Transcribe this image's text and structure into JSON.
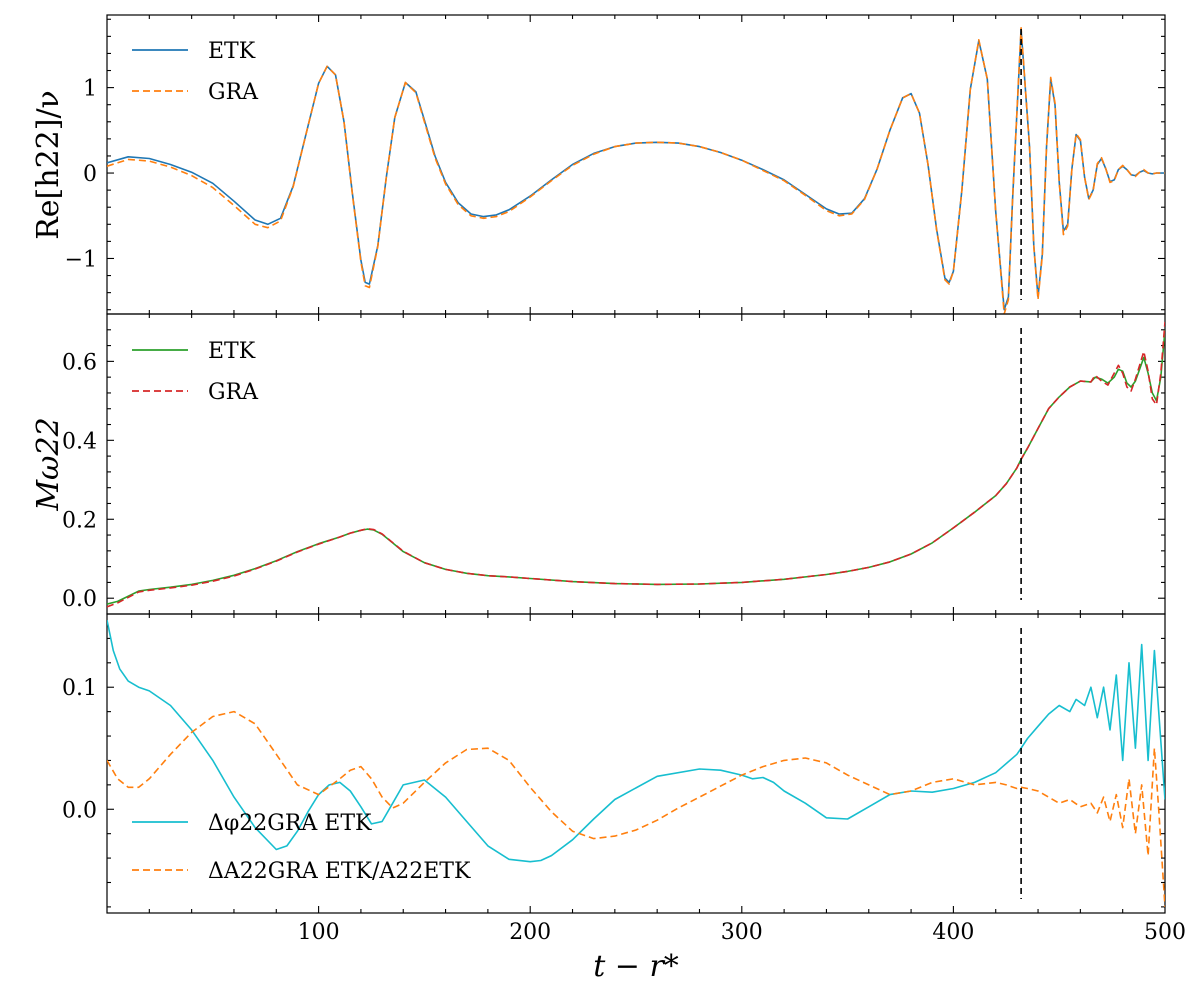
{
  "chart_data": [
    {
      "type": "line",
      "ylabel": "Re[h22]/ν",
      "xlim": [
        0,
        500
      ],
      "ylim": [
        -1.65,
        1.85
      ],
      "yticks": [
        {
          "v": -1,
          "label": "−1"
        },
        {
          "v": 0,
          "label": "0"
        },
        {
          "v": 1,
          "label": "1"
        }
      ],
      "legend_position": "top-left",
      "vline_x": 432,
      "series": [
        {
          "name": "ETK",
          "color": "#1f77b4",
          "dash": "solid",
          "x": [
            0,
            10,
            20,
            30,
            40,
            50,
            60,
            70,
            76,
            82,
            88,
            95,
            100,
            104,
            108,
            112,
            116,
            120,
            122,
            124,
            128,
            132,
            136,
            141,
            146,
            150,
            155,
            160,
            166,
            172,
            178,
            184,
            190,
            200,
            210,
            220,
            230,
            240,
            250,
            260,
            270,
            280,
            290,
            300,
            310,
            320,
            330,
            340,
            346,
            352,
            358,
            364,
            370,
            376,
            380,
            384,
            388,
            392,
            396,
            398,
            400,
            404,
            408,
            412,
            416,
            420,
            424,
            426,
            428,
            432,
            436,
            438,
            440,
            442,
            444,
            446,
            448,
            450,
            452,
            454,
            456,
            458,
            460,
            462,
            464,
            466,
            468,
            470,
            472,
            474,
            476,
            478,
            480,
            482,
            484,
            486,
            488,
            490,
            492,
            494,
            496,
            498,
            500
          ],
          "y": [
            0.12,
            0.19,
            0.17,
            0.1,
            0.01,
            -0.12,
            -0.33,
            -0.55,
            -0.6,
            -0.53,
            -0.15,
            0.55,
            1.05,
            1.25,
            1.15,
            0.6,
            -0.25,
            -1.02,
            -1.28,
            -1.3,
            -0.85,
            -0.05,
            0.65,
            1.06,
            0.95,
            0.62,
            0.2,
            -0.11,
            -0.35,
            -0.48,
            -0.51,
            -0.49,
            -0.43,
            -0.27,
            -0.08,
            0.1,
            0.23,
            0.31,
            0.35,
            0.36,
            0.35,
            0.31,
            0.24,
            0.15,
            0.04,
            -0.08,
            -0.25,
            -0.42,
            -0.48,
            -0.47,
            -0.3,
            0.05,
            0.5,
            0.88,
            0.93,
            0.7,
            0.1,
            -0.65,
            -1.23,
            -1.28,
            -1.15,
            -0.2,
            0.98,
            1.55,
            1.1,
            -0.45,
            -1.6,
            -1.45,
            -0.3,
            1.68,
            0.3,
            -0.85,
            -1.45,
            -0.95,
            0.3,
            1.1,
            0.8,
            -0.1,
            -0.68,
            -0.6,
            0.05,
            0.45,
            0.38,
            -0.05,
            -0.3,
            -0.2,
            0.1,
            0.17,
            0.05,
            -0.1,
            -0.08,
            0.04,
            0.08,
            0.04,
            -0.02,
            -0.03,
            0.01,
            0.03,
            0.0,
            -0.01,
            0.0,
            0.0,
            0.0
          ]
        },
        {
          "name": "GRA",
          "color": "#ff7f0e",
          "dash": "dashed",
          "x": [
            0,
            10,
            20,
            30,
            40,
            50,
            60,
            70,
            76,
            82,
            88,
            95,
            100,
            104,
            108,
            112,
            116,
            120,
            122,
            124,
            128,
            132,
            136,
            141,
            146,
            150,
            155,
            160,
            166,
            172,
            178,
            184,
            190,
            200,
            210,
            220,
            230,
            240,
            250,
            260,
            270,
            280,
            290,
            300,
            310,
            320,
            330,
            340,
            346,
            352,
            358,
            364,
            370,
            376,
            380,
            384,
            388,
            392,
            396,
            398,
            400,
            404,
            408,
            412,
            416,
            420,
            424,
            426,
            428,
            432,
            436,
            438,
            440,
            442,
            444,
            446,
            448,
            450,
            452,
            454,
            456,
            458,
            460,
            462,
            464,
            466,
            468,
            470,
            472,
            474,
            476,
            478,
            480,
            482,
            484,
            486,
            488,
            490,
            492,
            494,
            496,
            498,
            500
          ],
          "y": [
            0.08,
            0.16,
            0.14,
            0.07,
            -0.03,
            -0.17,
            -0.38,
            -0.6,
            -0.64,
            -0.56,
            -0.16,
            0.55,
            1.05,
            1.25,
            1.15,
            0.6,
            -0.26,
            -1.04,
            -1.32,
            -1.34,
            -0.86,
            -0.05,
            0.65,
            1.06,
            0.94,
            0.6,
            0.18,
            -0.13,
            -0.37,
            -0.5,
            -0.53,
            -0.51,
            -0.45,
            -0.28,
            -0.09,
            0.09,
            0.22,
            0.31,
            0.35,
            0.36,
            0.35,
            0.31,
            0.24,
            0.15,
            0.03,
            -0.09,
            -0.26,
            -0.44,
            -0.5,
            -0.48,
            -0.31,
            0.05,
            0.5,
            0.88,
            0.93,
            0.7,
            0.1,
            -0.66,
            -1.25,
            -1.3,
            -1.15,
            -0.2,
            0.98,
            1.56,
            1.1,
            -0.45,
            -1.65,
            -1.48,
            -0.3,
            1.7,
            0.3,
            -0.86,
            -1.48,
            -0.97,
            0.3,
            1.12,
            0.82,
            -0.1,
            -0.72,
            -0.62,
            0.05,
            0.46,
            0.39,
            -0.05,
            -0.31,
            -0.21,
            0.11,
            0.18,
            0.05,
            -0.11,
            -0.09,
            0.04,
            0.09,
            0.04,
            -0.02,
            -0.04,
            0.01,
            0.04,
            0.0,
            -0.01,
            0.0,
            0.0,
            0.0
          ]
        }
      ]
    },
    {
      "type": "line",
      "ylabel": "Mω22",
      "xlim": [
        0,
        500
      ],
      "ylim": [
        -0.04,
        0.72
      ],
      "yticks": [
        {
          "v": 0,
          "label": "0.0"
        },
        {
          "v": 0.2,
          "label": "0.2"
        },
        {
          "v": 0.4,
          "label": "0.4"
        },
        {
          "v": 0.6,
          "label": "0.6"
        }
      ],
      "legend_position": "top-left",
      "vline_x": 432,
      "series": [
        {
          "name": "ETK",
          "color": "#2ca02c",
          "dash": "solid",
          "x": [
            0,
            5,
            10,
            15,
            20,
            30,
            40,
            50,
            60,
            70,
            80,
            90,
            100,
            110,
            115,
            120,
            123,
            126,
            130,
            135,
            140,
            150,
            160,
            170,
            180,
            190,
            200,
            220,
            240,
            260,
            280,
            300,
            320,
            340,
            350,
            360,
            370,
            380,
            390,
            400,
            410,
            420,
            425,
            430,
            432,
            435,
            440,
            445,
            450,
            455,
            460,
            465,
            467,
            470,
            473,
            476,
            478,
            480,
            482,
            484,
            486,
            488,
            490,
            492,
            494,
            496,
            498,
            500
          ],
          "y": [
            -0.015,
            -0.008,
            0.005,
            0.018,
            0.022,
            0.028,
            0.035,
            0.045,
            0.058,
            0.075,
            0.095,
            0.118,
            0.138,
            0.155,
            0.165,
            0.172,
            0.175,
            0.173,
            0.162,
            0.14,
            0.118,
            0.09,
            0.073,
            0.063,
            0.057,
            0.054,
            0.05,
            0.042,
            0.037,
            0.035,
            0.036,
            0.04,
            0.048,
            0.06,
            0.068,
            0.078,
            0.092,
            0.112,
            0.14,
            0.178,
            0.218,
            0.26,
            0.29,
            0.33,
            0.352,
            0.38,
            0.43,
            0.48,
            0.51,
            0.535,
            0.55,
            0.548,
            0.56,
            0.555,
            0.545,
            0.56,
            0.58,
            0.575,
            0.545,
            0.535,
            0.55,
            0.58,
            0.61,
            0.57,
            0.52,
            0.5,
            0.56,
            0.68
          ]
        },
        {
          "name": "GRA",
          "color": "#d62728",
          "dash": "dashed",
          "x": [
            0,
            5,
            10,
            15,
            20,
            30,
            40,
            50,
            60,
            70,
            80,
            90,
            100,
            110,
            115,
            120,
            123,
            126,
            130,
            135,
            140,
            150,
            160,
            170,
            180,
            190,
            200,
            220,
            240,
            260,
            280,
            300,
            320,
            340,
            350,
            360,
            370,
            380,
            390,
            400,
            410,
            420,
            425,
            430,
            432,
            435,
            440,
            445,
            450,
            455,
            460,
            465,
            467,
            470,
            473,
            476,
            478,
            480,
            482,
            484,
            486,
            488,
            490,
            492,
            494,
            496,
            498,
            500
          ],
          "y": [
            -0.022,
            -0.012,
            0.002,
            0.016,
            0.02,
            0.026,
            0.033,
            0.043,
            0.056,
            0.074,
            0.094,
            0.117,
            0.137,
            0.155,
            0.165,
            0.172,
            0.176,
            0.174,
            0.163,
            0.141,
            0.119,
            0.09,
            0.073,
            0.063,
            0.057,
            0.054,
            0.05,
            0.042,
            0.037,
            0.035,
            0.036,
            0.04,
            0.048,
            0.06,
            0.068,
            0.078,
            0.092,
            0.112,
            0.14,
            0.178,
            0.218,
            0.26,
            0.29,
            0.33,
            0.352,
            0.38,
            0.43,
            0.48,
            0.51,
            0.535,
            0.55,
            0.548,
            0.565,
            0.55,
            0.54,
            0.57,
            0.59,
            0.57,
            0.535,
            0.525,
            0.555,
            0.59,
            0.625,
            0.575,
            0.505,
            0.49,
            0.57,
            0.7
          ]
        }
      ]
    },
    {
      "type": "line",
      "xlabel": "t − r*",
      "xlim": [
        0,
        500
      ],
      "ylim": [
        -0.085,
        0.16
      ],
      "xticks": [
        {
          "v": 100,
          "label": "100"
        },
        {
          "v": 200,
          "label": "200"
        },
        {
          "v": 300,
          "label": "300"
        },
        {
          "v": 400,
          "label": "400"
        },
        {
          "v": 500,
          "label": "500"
        }
      ],
      "yticks": [
        {
          "v": 0,
          "label": "0.0"
        },
        {
          "v": 0.1,
          "label": "0.1"
        }
      ],
      "legend_position": "lower-left",
      "vline_x": 432,
      "series": [
        {
          "name": "Δφ22GRA ETK",
          "color": "#17becf",
          "dash": "solid",
          "x": [
            0,
            3,
            6,
            10,
            15,
            20,
            30,
            40,
            50,
            60,
            70,
            80,
            85,
            90,
            95,
            100,
            105,
            110,
            115,
            120,
            125,
            130,
            135,
            140,
            150,
            160,
            170,
            180,
            190,
            200,
            205,
            210,
            220,
            230,
            240,
            260,
            280,
            290,
            300,
            305,
            310,
            315,
            320,
            330,
            340,
            350,
            360,
            370,
            380,
            390,
            400,
            410,
            420,
            430,
            432,
            435,
            440,
            445,
            450,
            455,
            458,
            462,
            465,
            468,
            471,
            474,
            477,
            480,
            483,
            486,
            489,
            492,
            495,
            497,
            500
          ],
          "y": [
            0.155,
            0.13,
            0.115,
            0.105,
            0.1,
            0.097,
            0.085,
            0.065,
            0.04,
            0.01,
            -0.015,
            -0.033,
            -0.03,
            -0.018,
            -0.002,
            0.012,
            0.02,
            0.022,
            0.015,
            0.002,
            -0.012,
            -0.01,
            0.005,
            0.02,
            0.024,
            0.01,
            -0.01,
            -0.03,
            -0.041,
            -0.043,
            -0.042,
            -0.038,
            -0.025,
            -0.008,
            0.008,
            0.027,
            0.033,
            0.032,
            0.028,
            0.025,
            0.026,
            0.022,
            0.015,
            0.005,
            -0.007,
            -0.008,
            0.002,
            0.012,
            0.015,
            0.014,
            0.017,
            0.022,
            0.03,
            0.045,
            0.05,
            0.058,
            0.068,
            0.078,
            0.085,
            0.08,
            0.09,
            0.085,
            0.1,
            0.075,
            0.1,
            0.065,
            0.11,
            0.04,
            0.12,
            0.05,
            0.135,
            0.04,
            0.13,
            0.08,
            0.008
          ]
        },
        {
          "name": "ΔA22GRA ETK/A22ETK",
          "color": "#ff7f0e",
          "dash": "dashed",
          "x": [
            0,
            5,
            10,
            15,
            20,
            30,
            40,
            50,
            60,
            70,
            80,
            90,
            100,
            110,
            115,
            120,
            125,
            130,
            135,
            140,
            150,
            160,
            170,
            180,
            190,
            200,
            210,
            220,
            230,
            240,
            250,
            260,
            270,
            280,
            290,
            300,
            310,
            320,
            330,
            340,
            350,
            360,
            370,
            380,
            390,
            400,
            410,
            420,
            425,
            430,
            432,
            435,
            440,
            445,
            450,
            455,
            460,
            465,
            468,
            471,
            474,
            477,
            480,
            483,
            486,
            489,
            492,
            495,
            497,
            500
          ],
          "y": [
            0.04,
            0.025,
            0.018,
            0.018,
            0.025,
            0.045,
            0.063,
            0.076,
            0.08,
            0.07,
            0.045,
            0.02,
            0.012,
            0.025,
            0.032,
            0.035,
            0.025,
            0.01,
            0.001,
            0.005,
            0.022,
            0.038,
            0.049,
            0.05,
            0.04,
            0.018,
            -0.002,
            -0.018,
            -0.024,
            -0.022,
            -0.017,
            -0.009,
            0.001,
            0.01,
            0.019,
            0.028,
            0.035,
            0.04,
            0.042,
            0.038,
            0.028,
            0.02,
            0.012,
            0.015,
            0.022,
            0.025,
            0.02,
            0.022,
            0.02,
            0.017,
            0.018,
            0.017,
            0.015,
            0.01,
            0.005,
            0.008,
            0.002,
            0.005,
            -0.003,
            0.01,
            -0.01,
            0.012,
            -0.015,
            0.025,
            -0.02,
            0.02,
            -0.038,
            0.05,
            0.0,
            -0.08
          ]
        }
      ]
    }
  ]
}
